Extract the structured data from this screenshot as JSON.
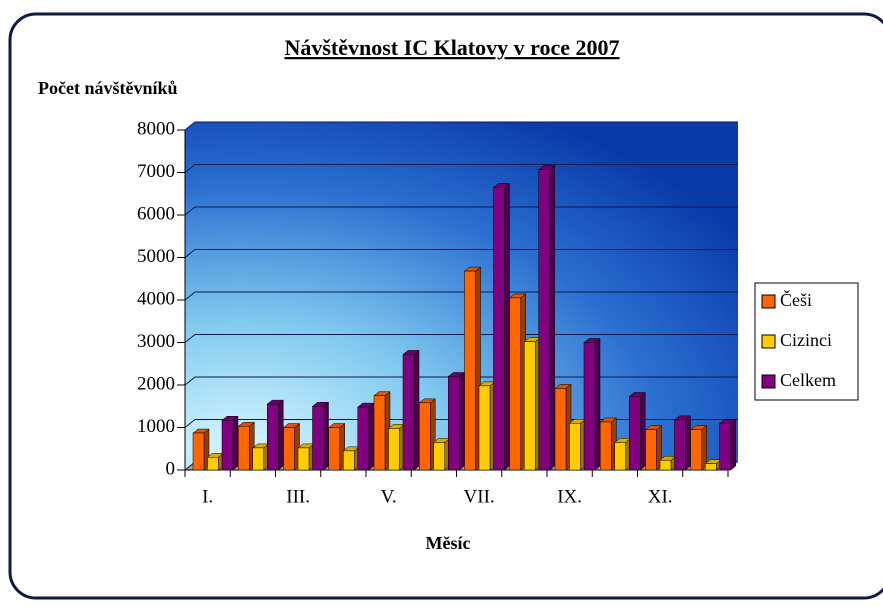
{
  "chart_data": {
    "type": "bar3d",
    "title": "Návštěvnost IC Klatovy v roce 2007",
    "y_label": "Počet návštěvníků",
    "x_label": "Měsíc",
    "categories": [
      "I.",
      null,
      "III.",
      null,
      "V.",
      null,
      "VII.",
      null,
      "IX.",
      null,
      "XI.",
      null
    ],
    "series": [
      {
        "name": "Češi",
        "color": "#ff6600",
        "values": [
          870,
          1030,
          1000,
          1000,
          1750,
          1580,
          4680,
          4050,
          1920,
          1130,
          950,
          950
        ]
      },
      {
        "name": "Cizinci",
        "color": "#ffcc00",
        "values": [
          300,
          520,
          520,
          450,
          980,
          650,
          1980,
          3020,
          1100,
          650,
          230,
          150
        ]
      },
      {
        "name": "Celkem",
        "color": "#800080",
        "values": [
          1170,
          1550,
          1500,
          1480,
          2720,
          2200,
          6650,
          7070,
          3000,
          1730,
          1180,
          1100
        ]
      }
    ],
    "ylim": [
      0,
      8000
    ],
    "yticks": [
      0,
      1000,
      2000,
      3000,
      4000,
      5000,
      6000,
      7000,
      8000
    ],
    "grid": true,
    "legend": "right"
  }
}
